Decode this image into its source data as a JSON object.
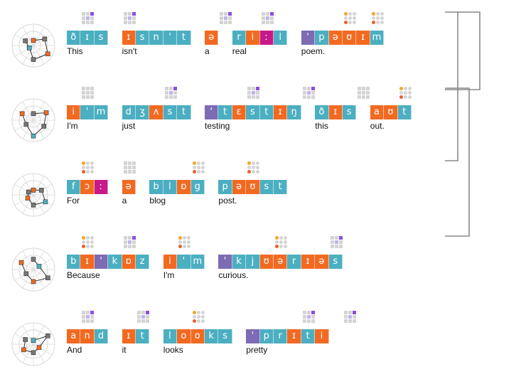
{
  "colors": {
    "vowel": "#f26a22",
    "consonant": "#4bafc1",
    "stress": "#7d6bb3",
    "length": "#c9188a",
    "grid_off": "#d4d4d4",
    "dot_orange": "#f5a623",
    "dot_red": "#e8602c",
    "sq_purple": "#8a4fe0",
    "sq_light": "#c3b2ea"
  },
  "lines": [
    {
      "cells": [
        {
          "ph": "ð",
          "k": "c"
        },
        {
          "ph": "ɪ",
          "k": "c"
        },
        {
          "ph": "s",
          "k": "c"
        },
        {
          "ph": "",
          "k": "g"
        },
        {
          "ph": "ɪ",
          "k": "v"
        },
        {
          "ph": "s",
          "k": "c"
        },
        {
          "ph": "n",
          "k": "c"
        },
        {
          "ph": "'",
          "k": "c"
        },
        {
          "ph": "t",
          "k": "c"
        },
        {
          "ph": "",
          "k": "g"
        },
        {
          "ph": "ə",
          "k": "v"
        },
        {
          "ph": "",
          "k": "g"
        },
        {
          "ph": "r",
          "k": "c"
        },
        {
          "ph": "i",
          "k": "v"
        },
        {
          "ph": "ː",
          "k": "l"
        },
        {
          "ph": "l",
          "k": "c"
        },
        {
          "ph": "",
          "k": "g"
        },
        {
          "ph": "'",
          "k": "s"
        },
        {
          "ph": "p",
          "k": "c"
        },
        {
          "ph": "ə",
          "k": "v"
        },
        {
          "ph": "ʊ",
          "k": "v"
        },
        {
          "ph": "ɪ",
          "k": "v"
        },
        {
          "ph": "m",
          "k": "c"
        }
      ],
      "words": [
        {
          "t": "This",
          "c": 0
        },
        {
          "t": "isn't",
          "c": 4
        },
        {
          "t": "a",
          "c": 10
        },
        {
          "t": "real",
          "c": 12
        },
        {
          "t": "poem.",
          "c": 17
        }
      ]
    },
    {
      "cells": [
        {
          "ph": "i",
          "k": "v"
        },
        {
          "ph": "'",
          "k": "c"
        },
        {
          "ph": "m",
          "k": "c"
        },
        {
          "ph": "",
          "k": "g"
        },
        {
          "ph": "d",
          "k": "c"
        },
        {
          "ph": "ʒ",
          "k": "c"
        },
        {
          "ph": "ʌ",
          "k": "v"
        },
        {
          "ph": "s",
          "k": "c"
        },
        {
          "ph": "t",
          "k": "c"
        },
        {
          "ph": "",
          "k": "g"
        },
        {
          "ph": "'",
          "k": "s"
        },
        {
          "ph": "t",
          "k": "c"
        },
        {
          "ph": "ɛ",
          "k": "v"
        },
        {
          "ph": "s",
          "k": "c"
        },
        {
          "ph": "t",
          "k": "c"
        },
        {
          "ph": "ɪ",
          "k": "v"
        },
        {
          "ph": "ŋ",
          "k": "c"
        },
        {
          "ph": "",
          "k": "g"
        },
        {
          "ph": "ð",
          "k": "c"
        },
        {
          "ph": "ɪ",
          "k": "v"
        },
        {
          "ph": "s",
          "k": "c"
        },
        {
          "ph": "",
          "k": "g"
        },
        {
          "ph": "a",
          "k": "v"
        },
        {
          "ph": "ʊ",
          "k": "v"
        },
        {
          "ph": "t",
          "k": "c"
        }
      ],
      "words": [
        {
          "t": "I'm",
          "c": 0
        },
        {
          "t": "just",
          "c": 4
        },
        {
          "t": "testing",
          "c": 10
        },
        {
          "t": "this",
          "c": 18
        },
        {
          "t": "out.",
          "c": 22
        }
      ]
    },
    {
      "cells": [
        {
          "ph": "f",
          "k": "c"
        },
        {
          "ph": "ɔ",
          "k": "v"
        },
        {
          "ph": "ː",
          "k": "l"
        },
        {
          "ph": "",
          "k": "g"
        },
        {
          "ph": "ə",
          "k": "v"
        },
        {
          "ph": "",
          "k": "g"
        },
        {
          "ph": "b",
          "k": "c"
        },
        {
          "ph": "l",
          "k": "c"
        },
        {
          "ph": "ɒ",
          "k": "v"
        },
        {
          "ph": "g",
          "k": "c"
        },
        {
          "ph": "",
          "k": "g"
        },
        {
          "ph": "p",
          "k": "c"
        },
        {
          "ph": "ə",
          "k": "v"
        },
        {
          "ph": "ʊ",
          "k": "v"
        },
        {
          "ph": "s",
          "k": "c"
        },
        {
          "ph": "t",
          "k": "c"
        }
      ],
      "words": [
        {
          "t": "For",
          "c": 0
        },
        {
          "t": "a",
          "c": 4
        },
        {
          "t": "blog",
          "c": 6
        },
        {
          "t": "post.",
          "c": 11
        }
      ]
    },
    {
      "cells": [
        {
          "ph": "b",
          "k": "c"
        },
        {
          "ph": "ɪ",
          "k": "v"
        },
        {
          "ph": "'",
          "k": "s"
        },
        {
          "ph": "k",
          "k": "c"
        },
        {
          "ph": "ɒ",
          "k": "v"
        },
        {
          "ph": "z",
          "k": "c"
        },
        {
          "ph": "",
          "k": "g"
        },
        {
          "ph": "i",
          "k": "v"
        },
        {
          "ph": "'",
          "k": "c"
        },
        {
          "ph": "m",
          "k": "c"
        },
        {
          "ph": "",
          "k": "g"
        },
        {
          "ph": "'",
          "k": "s"
        },
        {
          "ph": "k",
          "k": "c"
        },
        {
          "ph": "j",
          "k": "c"
        },
        {
          "ph": "ʊ",
          "k": "v"
        },
        {
          "ph": "ə",
          "k": "v"
        },
        {
          "ph": "r",
          "k": "c"
        },
        {
          "ph": "ɪ",
          "k": "v"
        },
        {
          "ph": "ə",
          "k": "v"
        },
        {
          "ph": "s",
          "k": "c"
        }
      ],
      "words": [
        {
          "t": "Because",
          "c": 0
        },
        {
          "t": "I'm",
          "c": 7
        },
        {
          "t": "curious.",
          "c": 11
        }
      ]
    },
    {
      "cells": [
        {
          "ph": "a",
          "k": "v"
        },
        {
          "ph": "n",
          "k": "v"
        },
        {
          "ph": "d",
          "k": "c"
        },
        {
          "ph": "",
          "k": "g"
        },
        {
          "ph": "ɪ",
          "k": "v"
        },
        {
          "ph": "t",
          "k": "c"
        },
        {
          "ph": "",
          "k": "g"
        },
        {
          "ph": "l",
          "k": "c"
        },
        {
          "ph": "o",
          "k": "v"
        },
        {
          "ph": "o",
          "k": "v"
        },
        {
          "ph": "k",
          "k": "c"
        },
        {
          "ph": "s",
          "k": "c"
        },
        {
          "ph": "",
          "k": "g"
        },
        {
          "ph": "'",
          "k": "s"
        },
        {
          "ph": "p",
          "k": "c"
        },
        {
          "ph": "r",
          "k": "c"
        },
        {
          "ph": "ɪ",
          "k": "v"
        },
        {
          "ph": "t",
          "k": "c"
        },
        {
          "ph": "i",
          "k": "v"
        }
      ],
      "words": [
        {
          "t": "And",
          "c": 0
        },
        {
          "t": "it",
          "c": 4
        },
        {
          "t": "looks",
          "c": 7
        },
        {
          "t": "pretty",
          "c": 13
        }
      ]
    }
  ],
  "glyph_sets": [
    [
      {
        "c": 1,
        "g": "sq"
      },
      {
        "c": 4,
        "g": "sq"
      },
      {
        "c": 11,
        "g": "sq"
      },
      {
        "c": 14,
        "g": "sq"
      },
      {
        "c": 20,
        "g": "dots"
      },
      {
        "c": 22,
        "g": "dots"
      }
    ],
    [
      {
        "c": 1,
        "g": "plain"
      },
      {
        "c": 7,
        "g": "sq"
      },
      {
        "c": 13,
        "g": "sq"
      },
      {
        "c": 17,
        "g": "sq"
      },
      {
        "c": 21,
        "g": "plain"
      },
      {
        "c": 24,
        "g": "dots"
      }
    ],
    [
      {
        "c": 1,
        "g": "dots"
      },
      {
        "c": 4,
        "g": "plain"
      },
      {
        "c": 9,
        "g": "dots"
      },
      {
        "c": 13,
        "g": "dots"
      }
    ],
    [
      {
        "c": 1,
        "g": "dots"
      },
      {
        "c": 4,
        "g": "sq"
      },
      {
        "c": 8,
        "g": "dots"
      },
      {
        "c": 15,
        "g": "dots"
      },
      {
        "c": 19,
        "g": "sq"
      }
    ],
    [
      {
        "c": 1,
        "g": "sq"
      },
      {
        "c": 5,
        "g": "sq"
      },
      {
        "c": 9,
        "g": "dots"
      },
      {
        "c": 17,
        "g": "sq"
      },
      {
        "c": 20,
        "g": "sq"
      }
    ]
  ],
  "radars": [
    {
      "pts": [
        [
          0.12,
          0.82
        ],
        [
          0.55,
          0.65
        ],
        [
          0.75,
          0.25
        ],
        [
          0.6,
          0.55
        ],
        [
          0.1,
          0.7
        ],
        [
          0.35,
          0.45
        ]
      ]
    },
    {
      "pts": [
        [
          0.2,
          0.72
        ],
        [
          0.65,
          0.85
        ],
        [
          0.5,
          0.35
        ],
        [
          0.7,
          0.6
        ],
        [
          0.3,
          0.55
        ],
        [
          0.55,
          0.8
        ]
      ]
    },
    {
      "pts": [
        [
          0.1,
          0.1
        ],
        [
          0.35,
          0.25
        ],
        [
          0.6,
          0.15
        ],
        [
          0.4,
          0.35
        ],
        [
          0.2,
          0.3
        ],
        [
          0.15,
          0.2
        ]
      ]
    },
    {
      "pts": [
        [
          0.4,
          0.7
        ],
        [
          0.2,
          0.55
        ],
        [
          0.75,
          0.3
        ],
        [
          0.5,
          0.8
        ],
        [
          0.3,
          0.45
        ],
        [
          0.6,
          0.2
        ]
      ]
    },
    {
      "pts": [
        [
          0.05,
          0.5
        ],
        [
          0.75,
          0.2
        ],
        [
          0.2,
          0.55
        ],
        [
          0.3,
          0.8
        ],
        [
          0.45,
          0.15
        ],
        [
          0.35,
          0.6
        ]
      ]
    }
  ],
  "rhyme_links": [
    [
      0,
      3
    ],
    [
      1,
      2
    ]
  ]
}
